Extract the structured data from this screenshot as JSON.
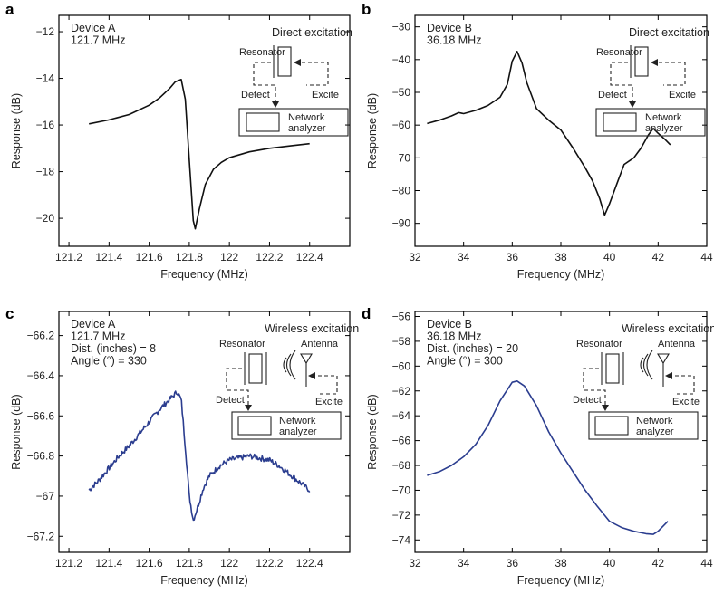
{
  "chart_data": [
    {
      "id": "a",
      "type": "line",
      "panel_label": "a",
      "device": "Device A",
      "frequency_text": "121.7 MHz",
      "extra_lines": [],
      "inset_title": "Direct excitation",
      "inset_labels": {
        "resonator": "Resonator",
        "detect": "Detect",
        "excite": "Excite",
        "analyzer_line1": "Network",
        "analyzer_line2": "analyzer"
      },
      "xlabel": "Frequency (MHz)",
      "ylabel": "Response (dB)",
      "xlim": [
        121.15,
        122.6
      ],
      "ylim": [
        -21.2,
        -11.3
      ],
      "xticks": [
        121.2,
        121.4,
        121.6,
        121.8,
        122,
        122.2,
        122.4
      ],
      "xtick_labels": [
        "121.2",
        "121.4",
        "121.6",
        "121.8",
        "122",
        "122.2",
        "122.4"
      ],
      "yticks": [
        -12,
        -14,
        -16,
        -18,
        -20
      ],
      "ytick_labels": [
        "−12",
        "−14",
        "−16",
        "−18",
        "−20"
      ],
      "line_color": "#111111",
      "x": [
        121.3,
        121.4,
        121.5,
        121.6,
        121.65,
        121.7,
        121.73,
        121.76,
        121.78,
        121.8,
        121.82,
        121.83,
        121.85,
        121.88,
        121.92,
        121.96,
        122.0,
        122.1,
        122.2,
        122.3,
        122.4
      ],
      "y": [
        -15.95,
        -15.78,
        -15.55,
        -15.15,
        -14.85,
        -14.45,
        -14.15,
        -14.05,
        -14.9,
        -17.5,
        -20.1,
        -20.45,
        -19.6,
        -18.55,
        -17.9,
        -17.6,
        -17.4,
        -17.15,
        -17.0,
        -16.9,
        -16.8
      ]
    },
    {
      "id": "b",
      "type": "line",
      "panel_label": "b",
      "device": "Device B",
      "frequency_text": "36.18 MHz",
      "extra_lines": [],
      "inset_title": "Direct excitation",
      "inset_labels": {
        "resonator": "Resonator",
        "detect": "Detect",
        "excite": "Excite",
        "analyzer_line1": "Network",
        "analyzer_line2": "analyzer"
      },
      "xlabel": "Frequency (MHz)",
      "ylabel": "Response (dB)",
      "xlim": [
        32,
        44
      ],
      "ylim": [
        -97,
        -26.5
      ],
      "xticks": [
        32,
        34,
        36,
        38,
        40,
        42,
        44
      ],
      "xtick_labels": [
        "32",
        "34",
        "36",
        "38",
        "40",
        "42",
        "44"
      ],
      "yticks": [
        -30,
        -40,
        -50,
        -60,
        -70,
        -80,
        -90
      ],
      "ytick_labels": [
        "−30",
        "−40",
        "−50",
        "−60",
        "−70",
        "−80",
        "−90"
      ],
      "line_color": "#111111",
      "x": [
        32.5,
        33.0,
        33.5,
        33.8,
        34.0,
        34.5,
        35.0,
        35.5,
        35.8,
        36.0,
        36.2,
        36.4,
        36.6,
        37.0,
        37.5,
        38.0,
        38.5,
        39.0,
        39.3,
        39.6,
        39.8,
        40.0,
        40.3,
        40.6,
        41.0,
        41.3,
        41.6,
        41.8,
        42.0,
        42.3,
        42.5
      ],
      "y": [
        -59.5,
        -58.5,
        -57.2,
        -56.2,
        -56.5,
        -55.5,
        -54.0,
        -51.5,
        -47.5,
        -40.5,
        -37.5,
        -41.0,
        -47.0,
        -55.0,
        -58.5,
        -61.5,
        -67.0,
        -73.0,
        -77.0,
        -82.5,
        -87.5,
        -84.0,
        -78.0,
        -72.0,
        -70.0,
        -67.0,
        -63.0,
        -61.0,
        -62.5,
        -64.5,
        -66.0
      ]
    },
    {
      "id": "c",
      "type": "line",
      "panel_label": "c",
      "device": "Device A",
      "frequency_text": "121.7 MHz",
      "extra_lines": [
        "Dist. (inches) = 8",
        "Angle (°) = 330"
      ],
      "inset_title": "Wireless excitation",
      "inset_labels": {
        "resonator": "Resonator",
        "antenna": "Antenna",
        "detect": "Detect",
        "excite": "Excite",
        "analyzer_line1": "Network",
        "analyzer_line2": "analyzer"
      },
      "xlabel": "Frequency (MHz)",
      "ylabel": "Response (dB)",
      "xlim": [
        121.15,
        122.6
      ],
      "ylim": [
        -67.28,
        -66.08
      ],
      "xticks": [
        121.2,
        121.4,
        121.6,
        121.8,
        122,
        122.2,
        122.4
      ],
      "xtick_labels": [
        "121.2",
        "121.4",
        "121.6",
        "121.8",
        "122",
        "122.2",
        "122.4"
      ],
      "yticks": [
        -66.2,
        -66.4,
        -66.6,
        -66.8,
        -67,
        -67.2
      ],
      "ytick_labels": [
        "−66.2",
        "−66.4",
        "−66.6",
        "−66.8",
        "−67",
        "−67.2"
      ],
      "line_color": "#2b3d8f",
      "noise": 0.014,
      "x": [
        121.3,
        121.35,
        121.4,
        121.45,
        121.5,
        121.55,
        121.6,
        121.65,
        121.7,
        121.74,
        121.76,
        121.78,
        121.8,
        121.82,
        121.84,
        121.87,
        121.9,
        121.95,
        122.0,
        122.05,
        122.1,
        122.15,
        122.2,
        122.25,
        122.3,
        122.35,
        122.4
      ],
      "y": [
        -66.97,
        -66.92,
        -66.86,
        -66.8,
        -66.75,
        -66.69,
        -66.63,
        -66.57,
        -66.52,
        -66.48,
        -66.52,
        -66.75,
        -67.0,
        -67.12,
        -67.06,
        -66.96,
        -66.9,
        -66.85,
        -66.82,
        -66.81,
        -66.8,
        -66.81,
        -66.82,
        -66.85,
        -66.89,
        -66.93,
        -66.97
      ]
    },
    {
      "id": "d",
      "type": "line",
      "panel_label": "d",
      "device": "Device B",
      "frequency_text": "36.18 MHz",
      "extra_lines": [
        "Dist. (inches) = 20",
        "Angle (°) = 300"
      ],
      "inset_title": "Wireless excitation",
      "inset_labels": {
        "resonator": "Resonator",
        "antenna": "Antenna",
        "detect": "Detect",
        "excite": "Excite",
        "analyzer_line1": "Network",
        "analyzer_line2": "analyzer"
      },
      "xlabel": "Frequency (MHz)",
      "ylabel": "Response (dB)",
      "xlim": [
        32,
        44
      ],
      "ylim": [
        -75,
        -55.6
      ],
      "xticks": [
        32,
        34,
        36,
        38,
        40,
        42,
        44
      ],
      "xtick_labels": [
        "32",
        "34",
        "36",
        "38",
        "40",
        "42",
        "44"
      ],
      "yticks": [
        -56,
        -58,
        -60,
        -62,
        -64,
        -66,
        -68,
        -70,
        -72,
        -74
      ],
      "ytick_labels": [
        "−56",
        "−58",
        "−60",
        "−62",
        "−64",
        "−66",
        "−68",
        "−70",
        "−72",
        "−74"
      ],
      "line_color": "#2b3d8f",
      "x": [
        32.5,
        33.0,
        33.5,
        34.0,
        34.5,
        35.0,
        35.5,
        36.0,
        36.2,
        36.5,
        37.0,
        37.5,
        38.0,
        38.5,
        39.0,
        39.5,
        40.0,
        40.5,
        41.0,
        41.5,
        41.8,
        42.0,
        42.2,
        42.4
      ],
      "y": [
        -68.8,
        -68.5,
        -68.0,
        -67.3,
        -66.3,
        -64.8,
        -62.8,
        -61.3,
        -61.2,
        -61.6,
        -63.2,
        -65.3,
        -67.0,
        -68.5,
        -70.0,
        -71.3,
        -72.5,
        -73.0,
        -73.3,
        -73.5,
        -73.55,
        -73.3,
        -72.9,
        -72.5
      ]
    }
  ]
}
